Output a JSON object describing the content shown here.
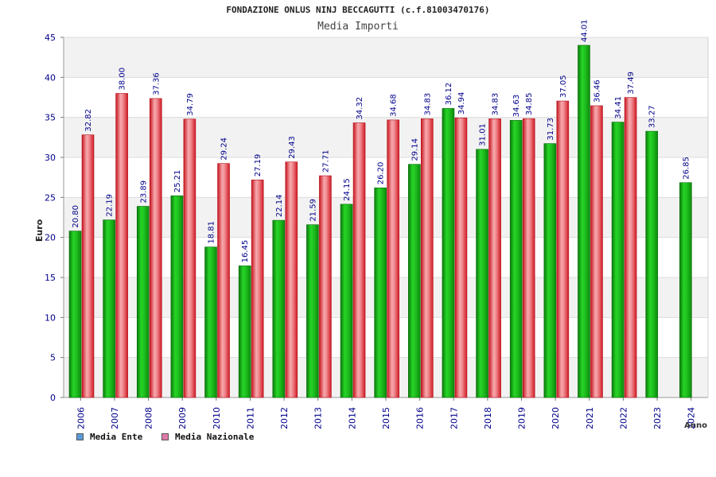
{
  "header": {
    "title": "FONDAZIONE ONLUS NINJ BECCAGUTTI (c.f.81003470176)",
    "subtitle": "Media Importi"
  },
  "legend": {
    "ente_label": "Media Ente",
    "nazionale_label": "Media Nazionale"
  },
  "colors": {
    "ente": "#16b416",
    "ente_legend": "#5b9bd5",
    "nazionale": "#e8333c",
    "nazionale_legend": "#e07aa8",
    "axis_text": "#00008b"
  },
  "chart_data": {
    "type": "bar",
    "title": "FONDAZIONE ONLUS NINJ BECCAGUTTI (c.f.81003470176)",
    "subtitle": "Media Importi",
    "xlabel": "Anno",
    "ylabel": "Euro",
    "ylim": [
      0,
      45
    ],
    "yticks": [
      0,
      5,
      10,
      15,
      20,
      25,
      30,
      35,
      40,
      45
    ],
    "grid": true,
    "legend_position": "bottom-left",
    "categories": [
      "2006",
      "2007",
      "2008",
      "2009",
      "2010",
      "2011",
      "2012",
      "2013",
      "2014",
      "2015",
      "2016",
      "2017",
      "2018",
      "2019",
      "2020",
      "2021",
      "2022",
      "2023",
      "2024"
    ],
    "series": [
      {
        "name": "Media Ente",
        "values": [
          20.8,
          22.19,
          23.89,
          25.21,
          18.81,
          16.45,
          22.14,
          21.59,
          24.15,
          26.2,
          29.14,
          36.12,
          31.01,
          34.63,
          31.73,
          44.01,
          34.41,
          33.27,
          26.85
        ]
      },
      {
        "name": "Media Nazionale",
        "values": [
          32.82,
          38.0,
          37.36,
          34.79,
          29.24,
          27.19,
          29.43,
          27.71,
          34.32,
          34.68,
          34.83,
          34.94,
          34.83,
          34.85,
          37.05,
          36.46,
          37.49,
          null,
          null
        ]
      }
    ],
    "value_labels": [
      [
        "20.80",
        "22.19",
        "23.89",
        "25.21",
        "18.81",
        "16.45",
        "22.14",
        "21.59",
        "24.15",
        "26.20",
        "29.14",
        "36.12",
        "31.01",
        "34.63",
        "31.73",
        "44.01",
        "34.41",
        "33.27",
        "26.85"
      ],
      [
        "32.82",
        "38.00",
        "37.36",
        "34.79",
        "29.24",
        "27.19",
        "29.43",
        "27.71",
        "34.32",
        "34.68",
        "34.83",
        "34.94",
        "34.83",
        "34.85",
        "37.05",
        "36.46",
        "37.49",
        "",
        ""
      ]
    ]
  }
}
